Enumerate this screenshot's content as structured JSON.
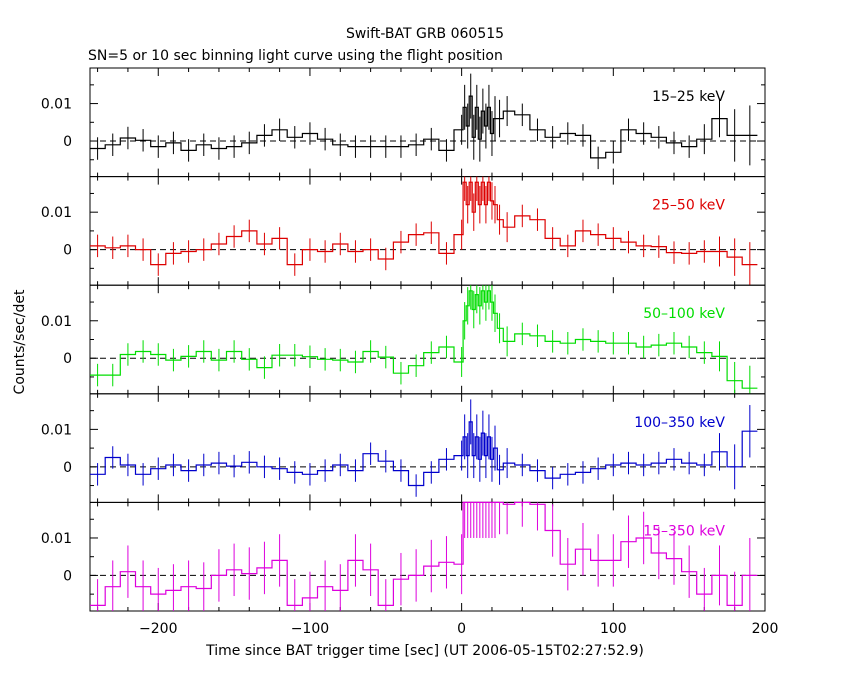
{
  "chart_data": {
    "type": "line",
    "title": "Swift-BAT GRB 060515",
    "subtitle": "SN=5 or 10 sec binning light curve using the flight position",
    "xlabel": "Time since BAT trigger time [sec] (UT 2006-05-15T02:27:52.9)",
    "ylabel": "Counts/sec/det",
    "xlim": [
      -245,
      200
    ],
    "ylim": [
      -0.0095,
      0.0195
    ],
    "x_ticks": [
      -200,
      -100,
      0,
      100,
      200
    ],
    "x_tick_labels": [
      "−200",
      "−100",
      "0",
      "100",
      "200"
    ],
    "y_ticks": [
      0,
      0.01
    ],
    "y_tick_labels": [
      "0",
      "0.01"
    ],
    "zero_line": "dashed",
    "panels": [
      {
        "name": "15–25 keV",
        "color": "#000000",
        "x": [
          -240,
          -230,
          -220,
          -210,
          -200,
          -190,
          -180,
          -170,
          -160,
          -150,
          -140,
          -130,
          -120,
          -110,
          -100,
          -90,
          -80,
          -70,
          -60,
          -50,
          -40,
          -30,
          -20,
          -10,
          0,
          2,
          4,
          6,
          8,
          10,
          12,
          14,
          16,
          18,
          20,
          22,
          25,
          30,
          40,
          50,
          60,
          70,
          80,
          90,
          100,
          110,
          120,
          130,
          140,
          150,
          160,
          170,
          180,
          190
        ],
        "y": [
          -0.002,
          -0.001,
          0.0008,
          0.0002,
          -0.0015,
          -0.0005,
          -0.0025,
          -0.001,
          -0.002,
          -0.0015,
          -0.0005,
          0.0015,
          0.003,
          0.001,
          0.002,
          0.0005,
          -0.001,
          -0.0015,
          -0.0015,
          -0.0015,
          -0.0015,
          -0.001,
          0.0005,
          -0.0025,
          0.003,
          0.009,
          0.004,
          0.012,
          0.001,
          0.009,
          0.0005,
          0.008,
          0.004,
          0.009,
          0.002,
          0.006,
          0.006,
          0.008,
          0.007,
          0.003,
          0.001,
          0.002,
          0.0015,
          -0.0045,
          -0.003,
          0.003,
          0.002,
          0.001,
          -0.0005,
          -0.0015,
          0.0005,
          0.006,
          0.0015,
          0.0015
        ],
        "err": [
          0.003,
          0.003,
          0.003,
          0.003,
          0.003,
          0.003,
          0.003,
          0.003,
          0.003,
          0.003,
          0.003,
          0.003,
          0.003,
          0.003,
          0.003,
          0.003,
          0.003,
          0.003,
          0.003,
          0.003,
          0.003,
          0.003,
          0.003,
          0.003,
          0.004,
          0.006,
          0.006,
          0.006,
          0.006,
          0.006,
          0.006,
          0.006,
          0.006,
          0.006,
          0.006,
          0.006,
          0.005,
          0.004,
          0.003,
          0.003,
          0.003,
          0.003,
          0.003,
          0.003,
          0.003,
          0.003,
          0.003,
          0.003,
          0.003,
          0.003,
          0.004,
          0.005,
          0.007,
          0.008
        ]
      },
      {
        "name": "25–50 keV",
        "color": "#dd0000",
        "x": [
          -240,
          -230,
          -220,
          -210,
          -200,
          -190,
          -180,
          -170,
          -160,
          -150,
          -140,
          -130,
          -120,
          -110,
          -100,
          -90,
          -80,
          -70,
          -60,
          -50,
          -40,
          -30,
          -20,
          -10,
          0,
          2,
          4,
          6,
          8,
          10,
          12,
          14,
          16,
          18,
          20,
          22,
          25,
          30,
          40,
          50,
          60,
          70,
          80,
          90,
          100,
          110,
          120,
          130,
          140,
          150,
          160,
          170,
          180,
          190
        ],
        "y": [
          0.001,
          0.0005,
          0.001,
          0.0,
          -0.004,
          -0.001,
          -0.0005,
          0.0,
          0.0015,
          0.0035,
          0.005,
          0.0015,
          0.003,
          -0.004,
          0.0,
          -0.0005,
          0.0015,
          -0.0005,
          0.0,
          -0.0025,
          0.002,
          0.004,
          0.0045,
          -0.001,
          0.004,
          0.018,
          0.012,
          0.018,
          0.01,
          0.018,
          0.012,
          0.018,
          0.012,
          0.018,
          0.013,
          0.012,
          0.008,
          0.006,
          0.009,
          0.008,
          0.003,
          0.001,
          0.005,
          0.004,
          0.003,
          0.002,
          0.001,
          0.0008,
          -0.0008,
          -0.001,
          -0.0005,
          -0.0005,
          -0.002,
          -0.004
        ],
        "err": [
          0.003,
          0.003,
          0.003,
          0.003,
          0.003,
          0.003,
          0.003,
          0.003,
          0.003,
          0.003,
          0.003,
          0.003,
          0.003,
          0.003,
          0.003,
          0.003,
          0.003,
          0.003,
          0.003,
          0.003,
          0.003,
          0.003,
          0.003,
          0.003,
          0.004,
          0.005,
          0.005,
          0.005,
          0.005,
          0.005,
          0.005,
          0.005,
          0.005,
          0.005,
          0.005,
          0.005,
          0.004,
          0.004,
          0.003,
          0.003,
          0.003,
          0.003,
          0.003,
          0.003,
          0.003,
          0.003,
          0.003,
          0.003,
          0.003,
          0.003,
          0.003,
          0.004,
          0.005,
          0.006
        ]
      },
      {
        "name": "50–100 keV",
        "color": "#00dd00",
        "x": [
          -240,
          -230,
          -220,
          -210,
          -200,
          -190,
          -180,
          -170,
          -160,
          -150,
          -140,
          -130,
          -120,
          -110,
          -100,
          -90,
          -80,
          -70,
          -60,
          -50,
          -40,
          -30,
          -20,
          -10,
          0,
          2,
          4,
          6,
          8,
          10,
          12,
          14,
          16,
          18,
          20,
          22,
          25,
          30,
          40,
          50,
          60,
          70,
          80,
          90,
          100,
          110,
          120,
          130,
          140,
          150,
          160,
          170,
          180,
          190
        ],
        "y": [
          -0.0045,
          -0.0045,
          0.001,
          0.0018,
          0.001,
          -0.0005,
          0.0005,
          0.0018,
          -0.0005,
          0.0018,
          -0.0003,
          -0.0025,
          0.0008,
          0.0008,
          0.0004,
          -0.0003,
          -0.0005,
          -0.001,
          0.0018,
          0.0003,
          -0.004,
          -0.002,
          0.0015,
          0.003,
          -0.001,
          0.01,
          0.014,
          0.018,
          0.013,
          0.017,
          0.014,
          0.018,
          0.015,
          0.018,
          0.015,
          0.012,
          0.008,
          0.0045,
          0.0065,
          0.006,
          0.0045,
          0.004,
          0.005,
          0.0045,
          0.004,
          0.004,
          0.003,
          0.0035,
          0.004,
          0.003,
          0.0015,
          0.0005,
          -0.006,
          -0.008
        ],
        "err": [
          0.003,
          0.003,
          0.003,
          0.003,
          0.003,
          0.003,
          0.003,
          0.003,
          0.003,
          0.003,
          0.003,
          0.003,
          0.003,
          0.003,
          0.003,
          0.003,
          0.003,
          0.003,
          0.003,
          0.003,
          0.003,
          0.003,
          0.003,
          0.003,
          0.004,
          0.005,
          0.005,
          0.005,
          0.005,
          0.005,
          0.005,
          0.005,
          0.005,
          0.005,
          0.005,
          0.005,
          0.004,
          0.004,
          0.003,
          0.003,
          0.003,
          0.003,
          0.003,
          0.003,
          0.003,
          0.003,
          0.003,
          0.003,
          0.003,
          0.003,
          0.003,
          0.004,
          0.005,
          0.006
        ]
      },
      {
        "name": "100–350 keV",
        "color": "#0000cc",
        "x": [
          -240,
          -230,
          -220,
          -210,
          -200,
          -190,
          -180,
          -170,
          -160,
          -150,
          -140,
          -130,
          -120,
          -110,
          -100,
          -90,
          -80,
          -70,
          -60,
          -50,
          -40,
          -30,
          -20,
          -10,
          0,
          2,
          4,
          6,
          8,
          10,
          12,
          14,
          16,
          18,
          20,
          22,
          25,
          30,
          40,
          50,
          60,
          70,
          80,
          90,
          100,
          110,
          120,
          130,
          140,
          150,
          160,
          170,
          180,
          190
        ],
        "y": [
          -0.002,
          0.0025,
          0.0005,
          -0.002,
          -0.0005,
          0.0005,
          -0.001,
          0.0005,
          0.001,
          0.0002,
          0.0012,
          0.0,
          -0.0005,
          -0.0015,
          -0.002,
          -0.001,
          0.0005,
          -0.001,
          0.0035,
          0.0015,
          -0.001,
          -0.005,
          -0.0015,
          0.002,
          0.003,
          0.008,
          0.003,
          0.012,
          0.003,
          0.008,
          0.002,
          0.009,
          0.003,
          0.008,
          0.002,
          0.005,
          -0.0008,
          0.001,
          0.0005,
          -0.001,
          -0.003,
          -0.002,
          -0.0015,
          -0.0005,
          0.0005,
          0.001,
          0.0005,
          0.001,
          0.002,
          0.001,
          0.0005,
          0.004,
          0.0,
          0.0095
        ],
        "err": [
          0.003,
          0.003,
          0.003,
          0.003,
          0.003,
          0.003,
          0.003,
          0.003,
          0.003,
          0.003,
          0.003,
          0.003,
          0.003,
          0.003,
          0.003,
          0.003,
          0.003,
          0.003,
          0.003,
          0.003,
          0.003,
          0.003,
          0.003,
          0.003,
          0.004,
          0.006,
          0.006,
          0.006,
          0.006,
          0.006,
          0.006,
          0.006,
          0.006,
          0.006,
          0.006,
          0.006,
          0.004,
          0.004,
          0.003,
          0.003,
          0.003,
          0.003,
          0.003,
          0.003,
          0.003,
          0.003,
          0.003,
          0.003,
          0.003,
          0.003,
          0.003,
          0.005,
          0.006,
          0.007
        ]
      },
      {
        "name": "15–350 keV",
        "color": "#dd00dd",
        "x": [
          -240,
          -230,
          -220,
          -210,
          -200,
          -190,
          -180,
          -170,
          -160,
          -150,
          -140,
          -130,
          -120,
          -110,
          -100,
          -90,
          -80,
          -70,
          -60,
          -50,
          -40,
          -30,
          -20,
          -10,
          0,
          2,
          4,
          6,
          8,
          10,
          12,
          14,
          16,
          18,
          20,
          22,
          25,
          30,
          40,
          50,
          60,
          70,
          80,
          90,
          100,
          110,
          120,
          130,
          140,
          150,
          160,
          170,
          180,
          190
        ],
        "y": [
          -0.008,
          -0.003,
          0.001,
          -0.003,
          -0.005,
          -0.004,
          -0.003,
          -0.0035,
          0.0,
          0.0015,
          0.0005,
          0.002,
          0.004,
          -0.008,
          -0.006,
          -0.003,
          -0.004,
          0.004,
          0.0015,
          -0.008,
          -0.001,
          0.0,
          0.0025,
          0.0035,
          0.003,
          0.02,
          0.02,
          0.02,
          0.02,
          0.02,
          0.02,
          0.02,
          0.02,
          0.02,
          0.02,
          0.02,
          0.02,
          0.019,
          0.02,
          0.019,
          0.012,
          0.003,
          0.007,
          0.004,
          0.004,
          0.009,
          0.01,
          0.006,
          0.0045,
          0.001,
          -0.005,
          0.0,
          -0.008,
          0.0
        ],
        "err": [
          0.007,
          0.007,
          0.007,
          0.007,
          0.007,
          0.007,
          0.007,
          0.007,
          0.007,
          0.007,
          0.007,
          0.007,
          0.007,
          0.007,
          0.007,
          0.007,
          0.007,
          0.007,
          0.007,
          0.007,
          0.007,
          0.007,
          0.007,
          0.007,
          0.008,
          0.01,
          0.01,
          0.01,
          0.01,
          0.01,
          0.01,
          0.01,
          0.01,
          0.01,
          0.01,
          0.01,
          0.009,
          0.008,
          0.007,
          0.007,
          0.007,
          0.007,
          0.007,
          0.007,
          0.007,
          0.007,
          0.007,
          0.007,
          0.007,
          0.007,
          0.007,
          0.008,
          0.009,
          0.01
        ]
      }
    ]
  }
}
